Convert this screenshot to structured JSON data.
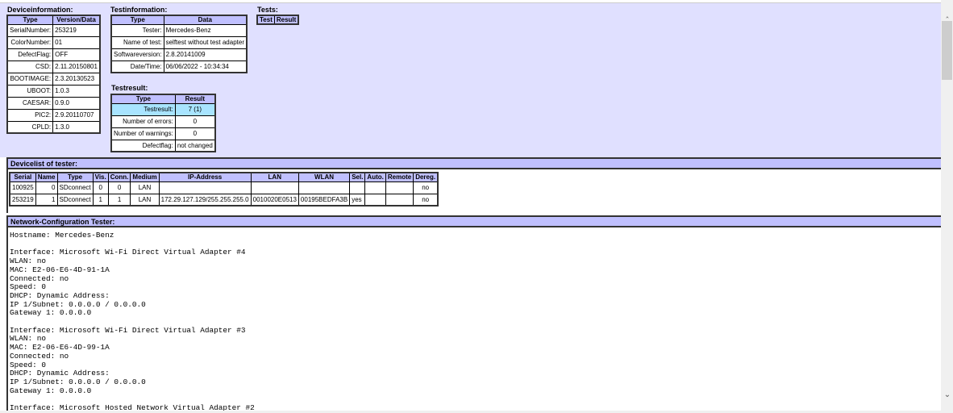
{
  "deviceinfo": {
    "title": "Deviceinformation:",
    "headers": [
      "Type",
      "Version/Data"
    ],
    "rows": [
      [
        "SerialNumber:",
        "253219"
      ],
      [
        "ColorNumber:",
        "01"
      ],
      [
        "DefectFlag:",
        "OFF"
      ],
      [
        "CSD:",
        "2.11.20150801"
      ],
      [
        "BOOTIMAGE:",
        "2.3.20130523"
      ],
      [
        "UBOOT:",
        "1.0.3"
      ],
      [
        "CAESAR:",
        "0.9.0"
      ],
      [
        "PIC2:",
        "2.9.20110707"
      ],
      [
        "CPLD:",
        "1.3.0"
      ]
    ]
  },
  "testinfo": {
    "title": "Testinformation:",
    "headers": [
      "Type",
      "Data"
    ],
    "rows": [
      [
        "Tester:",
        "Mercedes-Benz"
      ],
      [
        "Name of test:",
        "selftest without test adapter"
      ],
      [
        "Softwareversion:",
        "2.8.20141009"
      ],
      [
        "Date/Time:",
        "06/06/2022 - 10:34:34"
      ]
    ]
  },
  "testresult": {
    "title": "Testresult:",
    "headers": [
      "Type",
      "Result"
    ],
    "rows": [
      [
        "Testresult:",
        "7 (1)"
      ],
      [
        "Number of errors:",
        "0"
      ],
      [
        "Number of warnings:",
        "0"
      ],
      [
        "Defectflag:",
        "not changed"
      ]
    ],
    "highlight_color": "#a8e4ff"
  },
  "tests": {
    "title": "Tests:",
    "headers": [
      "Test",
      "Result"
    ]
  },
  "devicelist": {
    "title": "Devicelist of tester:",
    "headers": [
      "Serial",
      "Name",
      "Type",
      "Vis.",
      "Conn.",
      "Medium",
      "IP-Address",
      "LAN",
      "WLAN",
      "Sel.",
      "Auto.",
      "Remote",
      "Dereg."
    ],
    "rows": [
      [
        "100925",
        "0",
        "SDconnect",
        "0",
        "0",
        "LAN",
        "",
        "",
        "",
        "",
        "",
        "",
        "no"
      ],
      [
        "253219",
        "1",
        "SDconnect",
        "1",
        "1",
        "LAN",
        "172.29.127.129/255.255.255.0",
        "0010020E0513",
        "00195BEDFA3B",
        "yes",
        "",
        "",
        "no"
      ]
    ]
  },
  "network": {
    "title": "Network-Configuration Tester:",
    "lines": [
      "Hostname: Mercedes-Benz",
      "",
      "Interface: Microsoft Wi-Fi Direct Virtual Adapter #4",
      "WLAN: no",
      "MAC: E2-06-E6-4D-91-1A",
      "Connected: no",
      "Speed: 0",
      "DHCP: Dynamic Address:",
      "IP 1/Subnet: 0.0.0.0 / 0.0.0.0",
      "Gateway 1: 0.0.0.0",
      "",
      "Interface: Microsoft Wi-Fi Direct Virtual Adapter #3",
      "WLAN: no",
      "MAC: E2-06-E6-4D-99-1A",
      "Connected: no",
      "Speed: 0",
      "DHCP: Dynamic Address:",
      "IP 1/Subnet: 0.0.0.0 / 0.0.0.0",
      "Gateway 1: 0.0.0.0",
      "",
      "Interface: Microsoft Hosted Network Virtual Adapter #2"
    ]
  },
  "colors": {
    "panel": "#e0e0ff",
    "header": "#c0c0ff"
  }
}
